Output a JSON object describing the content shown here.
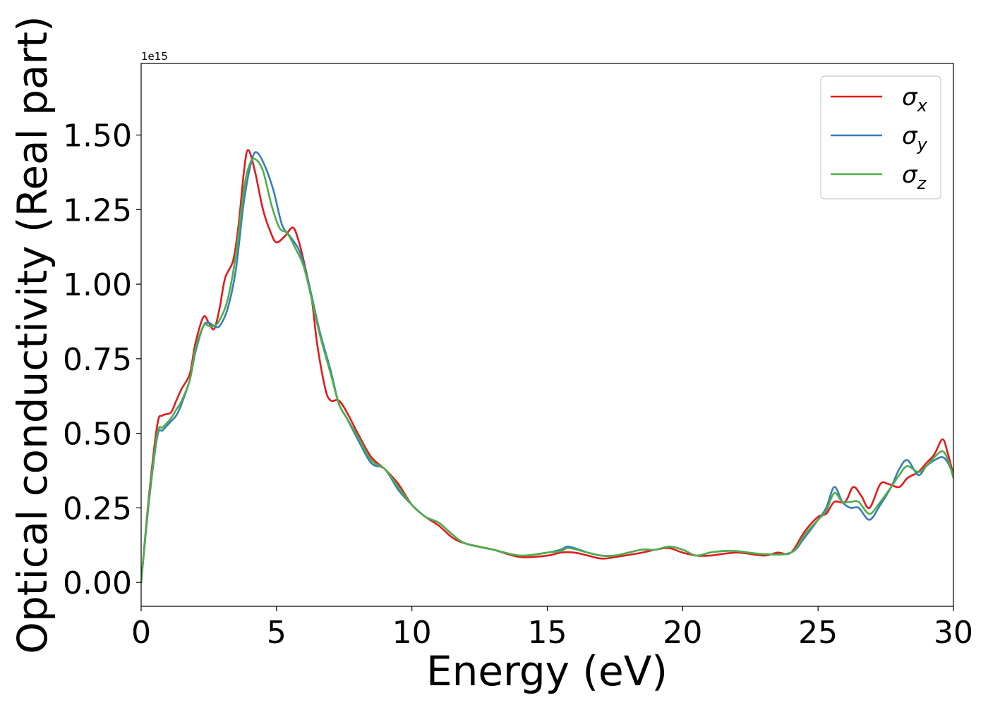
{
  "chart_data": {
    "type": "line",
    "xlabel": "Energy (eV)",
    "ylabel": "Optical conductivity (Real part)",
    "y_offset_text": "1e15",
    "y_multiplier": 1000000000000000.0,
    "xlim": [
      0,
      30
    ],
    "ylim": [
      -0.08,
      1.74
    ],
    "x_ticks": [
      0,
      5,
      10,
      15,
      20,
      25,
      30
    ],
    "x_tick_labels": [
      "0",
      "5",
      "10",
      "15",
      "20",
      "25",
      "30"
    ],
    "y_ticks": [
      0.0,
      0.25,
      0.5,
      0.75,
      1.0,
      1.25,
      1.5
    ],
    "y_tick_labels": [
      "0.00",
      "0.25",
      "0.50",
      "0.75",
      "1.00",
      "1.25",
      "1.50"
    ],
    "grid": false,
    "legend_position": "top-right",
    "series": [
      {
        "name": "σx",
        "name_base": "σ",
        "name_sub": "x",
        "color": "#e41a1c",
        "points": [
          [
            0,
            0
          ],
          [
            0.3,
            0.3
          ],
          [
            0.6,
            0.53
          ],
          [
            0.8,
            0.56
          ],
          [
            1.1,
            0.57
          ],
          [
            1.3,
            0.61
          ],
          [
            1.5,
            0.65
          ],
          [
            1.8,
            0.7
          ],
          [
            2.0,
            0.8
          ],
          [
            2.3,
            0.89
          ],
          [
            2.5,
            0.87
          ],
          [
            2.7,
            0.85
          ],
          [
            2.9,
            0.92
          ],
          [
            3.1,
            1.02
          ],
          [
            3.4,
            1.08
          ],
          [
            3.6,
            1.2
          ],
          [
            3.8,
            1.38
          ],
          [
            3.95,
            1.45
          ],
          [
            4.2,
            1.38
          ],
          [
            4.5,
            1.25
          ],
          [
            4.8,
            1.17
          ],
          [
            5.0,
            1.14
          ],
          [
            5.3,
            1.16
          ],
          [
            5.6,
            1.19
          ],
          [
            5.8,
            1.15
          ],
          [
            6.0,
            1.08
          ],
          [
            6.3,
            0.95
          ],
          [
            6.5,
            0.8
          ],
          [
            6.8,
            0.65
          ],
          [
            7.0,
            0.61
          ],
          [
            7.3,
            0.61
          ],
          [
            7.6,
            0.57
          ],
          [
            8.0,
            0.5
          ],
          [
            8.5,
            0.42
          ],
          [
            9.0,
            0.38
          ],
          [
            9.5,
            0.33
          ],
          [
            10.0,
            0.26
          ],
          [
            10.5,
            0.22
          ],
          [
            11.0,
            0.19
          ],
          [
            11.5,
            0.15
          ],
          [
            12.0,
            0.13
          ],
          [
            13.0,
            0.11
          ],
          [
            14.0,
            0.085
          ],
          [
            15.0,
            0.09
          ],
          [
            15.5,
            0.1
          ],
          [
            16.0,
            0.1
          ],
          [
            16.5,
            0.09
          ],
          [
            17.0,
            0.08
          ],
          [
            17.5,
            0.085
          ],
          [
            18.5,
            0.1
          ],
          [
            19.0,
            0.11
          ],
          [
            19.5,
            0.115
          ],
          [
            20.0,
            0.1
          ],
          [
            20.5,
            0.09
          ],
          [
            21.0,
            0.09
          ],
          [
            22.0,
            0.1
          ],
          [
            23.0,
            0.09
          ],
          [
            23.5,
            0.1
          ],
          [
            24.0,
            0.1
          ],
          [
            24.5,
            0.17
          ],
          [
            25.0,
            0.22
          ],
          [
            25.3,
            0.23
          ],
          [
            25.6,
            0.27
          ],
          [
            26.0,
            0.27
          ],
          [
            26.3,
            0.32
          ],
          [
            26.6,
            0.29
          ],
          [
            26.9,
            0.25
          ],
          [
            27.3,
            0.33
          ],
          [
            27.6,
            0.33
          ],
          [
            28.0,
            0.32
          ],
          [
            28.3,
            0.35
          ],
          [
            28.7,
            0.37
          ],
          [
            29.0,
            0.4
          ],
          [
            29.3,
            0.43
          ],
          [
            29.6,
            0.48
          ],
          [
            29.8,
            0.43
          ],
          [
            30.0,
            0.36
          ]
        ]
      },
      {
        "name": "σy",
        "name_base": "σ",
        "name_sub": "y",
        "color": "#377eb8",
        "points": [
          [
            0,
            0
          ],
          [
            0.3,
            0.28
          ],
          [
            0.6,
            0.49
          ],
          [
            0.8,
            0.51
          ],
          [
            1.1,
            0.54
          ],
          [
            1.3,
            0.56
          ],
          [
            1.5,
            0.6
          ],
          [
            1.8,
            0.68
          ],
          [
            2.0,
            0.77
          ],
          [
            2.3,
            0.86
          ],
          [
            2.5,
            0.87
          ],
          [
            2.7,
            0.86
          ],
          [
            2.9,
            0.86
          ],
          [
            3.2,
            0.92
          ],
          [
            3.5,
            1.05
          ],
          [
            3.8,
            1.28
          ],
          [
            4.1,
            1.42
          ],
          [
            4.3,
            1.44
          ],
          [
            4.6,
            1.39
          ],
          [
            4.9,
            1.31
          ],
          [
            5.2,
            1.2
          ],
          [
            5.5,
            1.16
          ],
          [
            5.8,
            1.12
          ],
          [
            6.0,
            1.07
          ],
          [
            6.3,
            0.96
          ],
          [
            6.6,
            0.84
          ],
          [
            7.0,
            0.71
          ],
          [
            7.3,
            0.6
          ],
          [
            7.6,
            0.55
          ],
          [
            8.0,
            0.48
          ],
          [
            8.5,
            0.4
          ],
          [
            9.0,
            0.38
          ],
          [
            9.5,
            0.31
          ],
          [
            10.0,
            0.26
          ],
          [
            10.5,
            0.22
          ],
          [
            11.0,
            0.2
          ],
          [
            11.5,
            0.16
          ],
          [
            12.0,
            0.13
          ],
          [
            13.0,
            0.11
          ],
          [
            14.0,
            0.09
          ],
          [
            15.0,
            0.1
          ],
          [
            15.5,
            0.11
          ],
          [
            15.8,
            0.12
          ],
          [
            16.5,
            0.1
          ],
          [
            17.0,
            0.09
          ],
          [
            17.5,
            0.09
          ],
          [
            18.0,
            0.1
          ],
          [
            18.5,
            0.11
          ],
          [
            19.0,
            0.11
          ],
          [
            19.5,
            0.12
          ],
          [
            20.0,
            0.11
          ],
          [
            20.5,
            0.09
          ],
          [
            21.0,
            0.1
          ],
          [
            21.5,
            0.105
          ],
          [
            22.0,
            0.105
          ],
          [
            23.0,
            0.095
          ],
          [
            24.0,
            0.1
          ],
          [
            24.5,
            0.15
          ],
          [
            25.0,
            0.21
          ],
          [
            25.3,
            0.25
          ],
          [
            25.6,
            0.32
          ],
          [
            25.9,
            0.27
          ],
          [
            26.2,
            0.25
          ],
          [
            26.5,
            0.25
          ],
          [
            26.9,
            0.21
          ],
          [
            27.3,
            0.26
          ],
          [
            27.7,
            0.32
          ],
          [
            28.0,
            0.38
          ],
          [
            28.3,
            0.41
          ],
          [
            28.7,
            0.36
          ],
          [
            29.0,
            0.39
          ],
          [
            29.3,
            0.41
          ],
          [
            29.6,
            0.42
          ],
          [
            29.8,
            0.4
          ],
          [
            30.0,
            0.36
          ]
        ]
      },
      {
        "name": "σz",
        "name_base": "σ",
        "name_sub": "z",
        "color": "#4daf4a",
        "points": [
          [
            0,
            0
          ],
          [
            0.3,
            0.29
          ],
          [
            0.6,
            0.5
          ],
          [
            0.8,
            0.52
          ],
          [
            1.1,
            0.55
          ],
          [
            1.3,
            0.58
          ],
          [
            1.5,
            0.61
          ],
          [
            1.8,
            0.68
          ],
          [
            2.0,
            0.78
          ],
          [
            2.3,
            0.86
          ],
          [
            2.5,
            0.86
          ],
          [
            2.7,
            0.86
          ],
          [
            2.9,
            0.88
          ],
          [
            3.2,
            0.95
          ],
          [
            3.5,
            1.1
          ],
          [
            3.8,
            1.32
          ],
          [
            4.0,
            1.4
          ],
          [
            4.2,
            1.42
          ],
          [
            4.5,
            1.38
          ],
          [
            4.8,
            1.27
          ],
          [
            5.1,
            1.19
          ],
          [
            5.4,
            1.17
          ],
          [
            5.7,
            1.12
          ],
          [
            6.0,
            1.06
          ],
          [
            6.3,
            0.95
          ],
          [
            6.6,
            0.83
          ],
          [
            7.0,
            0.7
          ],
          [
            7.3,
            0.6
          ],
          [
            7.6,
            0.55
          ],
          [
            8.0,
            0.49
          ],
          [
            8.5,
            0.41
          ],
          [
            9.0,
            0.38
          ],
          [
            9.5,
            0.32
          ],
          [
            10.0,
            0.26
          ],
          [
            10.5,
            0.22
          ],
          [
            11.0,
            0.2
          ],
          [
            11.5,
            0.16
          ],
          [
            12.0,
            0.13
          ],
          [
            13.0,
            0.11
          ],
          [
            14.0,
            0.09
          ],
          [
            15.0,
            0.1
          ],
          [
            15.5,
            0.105
          ],
          [
            15.8,
            0.115
          ],
          [
            16.5,
            0.1
          ],
          [
            17.0,
            0.09
          ],
          [
            17.5,
            0.09
          ],
          [
            18.0,
            0.1
          ],
          [
            18.5,
            0.11
          ],
          [
            19.0,
            0.11
          ],
          [
            19.5,
            0.12
          ],
          [
            20.0,
            0.11
          ],
          [
            20.5,
            0.09
          ],
          [
            21.0,
            0.1
          ],
          [
            21.5,
            0.105
          ],
          [
            22.0,
            0.105
          ],
          [
            23.0,
            0.095
          ],
          [
            24.0,
            0.1
          ],
          [
            24.5,
            0.16
          ],
          [
            25.0,
            0.21
          ],
          [
            25.3,
            0.24
          ],
          [
            25.6,
            0.3
          ],
          [
            25.9,
            0.27
          ],
          [
            26.2,
            0.27
          ],
          [
            26.5,
            0.27
          ],
          [
            26.9,
            0.23
          ],
          [
            27.3,
            0.27
          ],
          [
            27.7,
            0.32
          ],
          [
            28.0,
            0.36
          ],
          [
            28.3,
            0.39
          ],
          [
            28.7,
            0.37
          ],
          [
            29.0,
            0.39
          ],
          [
            29.3,
            0.42
          ],
          [
            29.6,
            0.44
          ],
          [
            29.8,
            0.41
          ],
          [
            30.0,
            0.35
          ]
        ]
      }
    ]
  }
}
